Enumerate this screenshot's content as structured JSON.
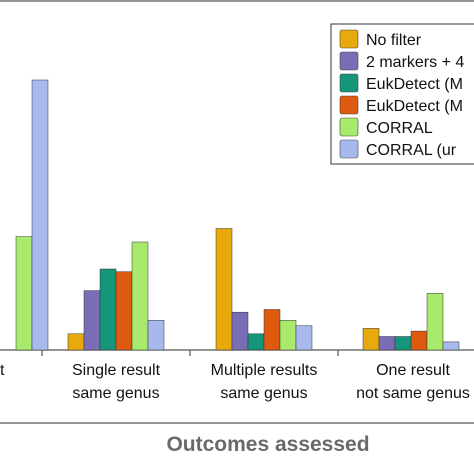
{
  "chart_data": {
    "type": "bar",
    "title": "",
    "xlabel": "Outcomes assessed",
    "ylabel": "",
    "ylim": [
      0,
      100
    ],
    "categories": [
      {
        "lines": [
          "t"
        ]
      },
      {
        "lines": [
          "Single result",
          "same genus"
        ]
      },
      {
        "lines": [
          "Multiple results",
          "same genus"
        ]
      },
      {
        "lines": [
          "One result",
          "not same genus"
        ]
      }
    ],
    "series": [
      {
        "name": "No filter",
        "color": "#E8A90C",
        "values": [
          null,
          6,
          45,
          8
        ]
      },
      {
        "name": "2 markers + 4",
        "color": "#7B6DB5",
        "values": [
          null,
          22,
          14,
          5
        ]
      },
      {
        "name": "EukDetect (M",
        "color": "#15967B",
        "values": [
          null,
          30,
          6,
          5
        ]
      },
      {
        "name": "EukDetect (M",
        "color": "#DD5A0E",
        "values": [
          null,
          29,
          15,
          7
        ]
      },
      {
        "name": "CORRAL",
        "color": "#A8EB6C",
        "values": [
          42,
          40,
          11,
          21
        ]
      },
      {
        "name": "CORRAL (ur",
        "color": "#A7B9EC",
        "values": [
          100,
          11,
          9,
          3
        ]
      }
    ],
    "legend_position": "top-right"
  }
}
